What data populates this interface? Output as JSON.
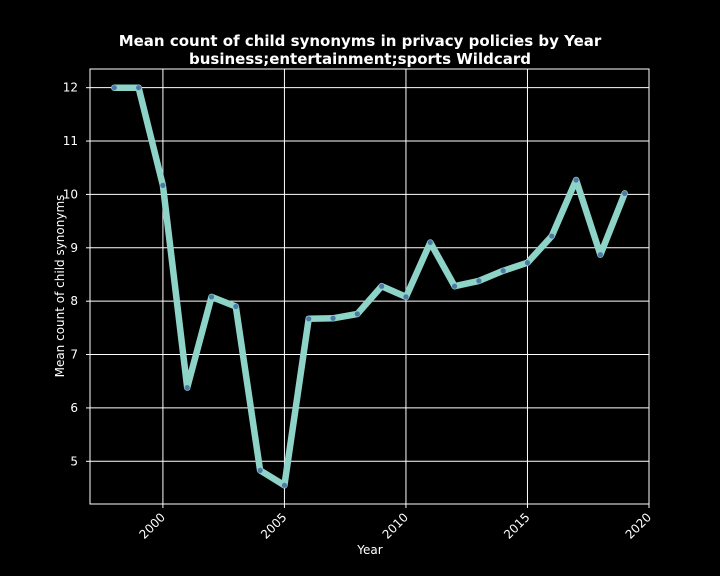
{
  "chart_data": {
    "type": "line",
    "title": "Mean count of child synonyms in privacy policies by Year",
    "subtitle": "business;entertainment;sports Wildcard",
    "xlabel": "Year",
    "ylabel": "Mean count of child synonyms",
    "xlim": [
      1997.0,
      2020.0
    ],
    "ylim": [
      4.2,
      12.35
    ],
    "x_ticks": [
      2000,
      2005,
      2010,
      2015,
      2020
    ],
    "y_ticks": [
      5,
      6,
      7,
      8,
      9,
      10,
      11,
      12
    ],
    "grid": true,
    "x": [
      1998,
      1999,
      2000,
      2001,
      2002,
      2003,
      2004,
      2005,
      2006,
      2007,
      2008,
      2009,
      2010,
      2011,
      2012,
      2013,
      2014,
      2015,
      2016,
      2017,
      2018,
      2019
    ],
    "series": [
      {
        "values": [
          12.0,
          12.0,
          10.17,
          6.38,
          8.08,
          7.9,
          4.83,
          4.55,
          7.67,
          7.68,
          7.76,
          8.28,
          8.08,
          9.1,
          8.28,
          8.38,
          8.57,
          8.72,
          9.22,
          10.27,
          8.87,
          10.02
        ],
        "line_color": "#8dd3c7",
        "marker_color": "#4e79a7"
      }
    ]
  }
}
